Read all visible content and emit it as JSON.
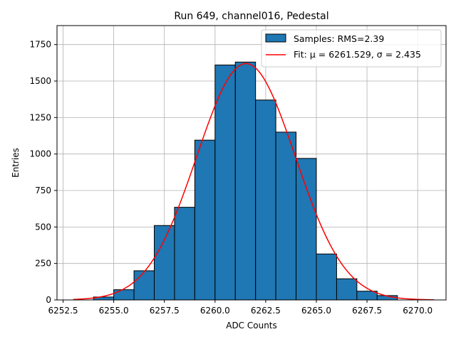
{
  "chart_data": {
    "type": "bar",
    "title": "Run 649, channel016, Pedestal",
    "xlabel": "ADC Counts",
    "ylabel": "Entries",
    "xlim": [
      6252.2,
      6271.4
    ],
    "ylim": [
      0,
      1880
    ],
    "xticks": [
      6252.5,
      6255.0,
      6257.5,
      6260.0,
      6262.5,
      6265.0,
      6267.5,
      6270.0
    ],
    "xtick_labels": [
      "6252.5",
      "6255.0",
      "6257.5",
      "6260.0",
      "6262.5",
      "6265.0",
      "6267.5",
      "6270.0"
    ],
    "yticks": [
      0,
      250,
      500,
      750,
      1000,
      1250,
      1500,
      1750
    ],
    "ytick_labels": [
      "0",
      "250",
      "500",
      "750",
      "1000",
      "1250",
      "1500",
      "1750"
    ],
    "grid": true,
    "legend_position": "top-right",
    "histogram": {
      "name": "Samples: RMS=2.39",
      "color": "#1f77b4",
      "bin_edges": [
        6254,
        6255,
        6256,
        6257,
        6258,
        6259,
        6260,
        6261,
        6262,
        6263,
        6264,
        6265,
        6266,
        6267,
        6268,
        6269
      ],
      "counts": [
        20,
        70,
        200,
        510,
        635,
        1095,
        1610,
        1630,
        1370,
        1150,
        970,
        315,
        145,
        60,
        30
      ]
    },
    "fit": {
      "name": "Fit: μ = 6261.529, σ = 2.435",
      "color": "#ff0000",
      "mu": 6261.529,
      "sigma": 2.435,
      "amplitude": 1620,
      "x_range": [
        6253.0,
        6270.8
      ]
    }
  }
}
